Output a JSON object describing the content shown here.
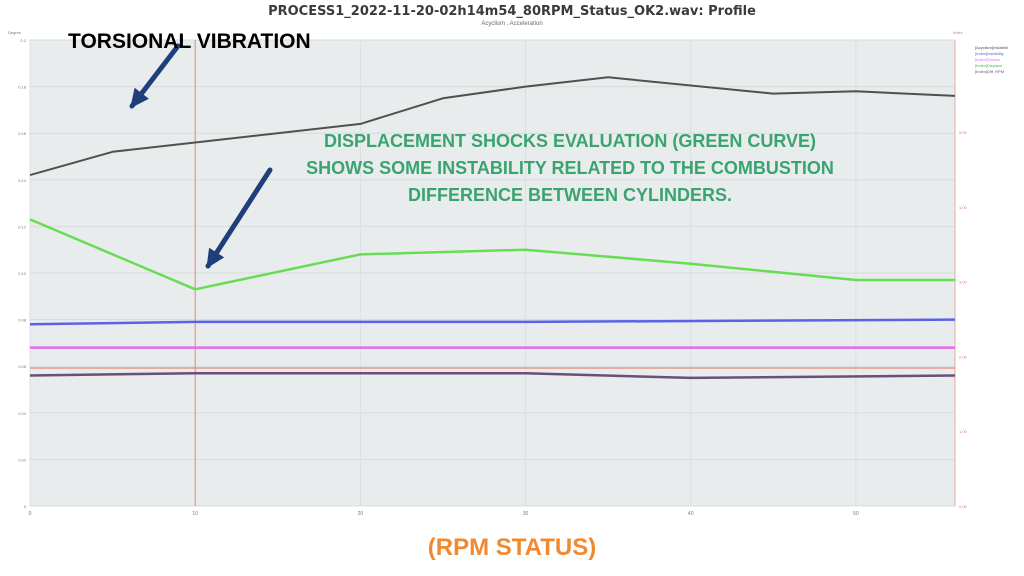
{
  "title": "PROCESS1_2022-11-20-02h14m54_80RPM_Status_OK2.wav: Profile",
  "subtitle": "Acyclism , Acceleration",
  "annotations": {
    "torsional": "TORSIONAL VIBRATION",
    "displacement_lines": [
      "DISPLACEMENT SHOCKS EVALUATION (GREEN CURVE)",
      "SHOWS SOME INSTABILITY RELATED TO THE COMBUSTION",
      "DIFFERENCE BETWEEN CYLINDERS."
    ],
    "x_caption": "(RPM STATUS)"
  },
  "colors": {
    "background": "#e9ecec",
    "annotation_green": "#3aa470",
    "caption_orange": "#f08a2e",
    "arrow": "#1f3f7a",
    "cursor": "#e8857a"
  },
  "chart_data": {
    "type": "line",
    "x_ticks": [
      "0",
      "10",
      "20",
      "30",
      "40",
      "50"
    ],
    "xlim": [
      0,
      56
    ],
    "left_axis": {
      "ylim": [
        0,
        0.2
      ],
      "ticks": [
        "0.2",
        "0.18",
        "0.16",
        "0.14",
        "0.12",
        "0.10",
        "0.08",
        "0.06",
        "0.04",
        "0.02",
        "0"
      ]
    },
    "right_axis": {
      "ticks": [
        "5.00",
        "4.00",
        "3.00",
        "2.00",
        "1.00",
        "0.00"
      ]
    },
    "cursor_x": 10,
    "grid": true,
    "legend_position": "right",
    "series": [
      {
        "color": "#505050",
        "x": [
          0,
          5,
          10,
          20,
          25,
          30,
          35,
          45,
          50,
          56
        ],
        "y": [
          0.142,
          0.152,
          0.156,
          0.164,
          0.175,
          0.18,
          0.184,
          0.177,
          0.178,
          0.176
        ]
      },
      {
        "color": "#66dd55",
        "x": [
          0,
          10,
          20,
          30,
          40,
          50,
          56
        ],
        "y": [
          0.123,
          0.093,
          0.108,
          0.11,
          0.104,
          0.097,
          0.097
        ]
      },
      {
        "color": "#5a63e6",
        "x": [
          0,
          10,
          30,
          56
        ],
        "y": [
          0.078,
          0.079,
          0.079,
          0.08
        ]
      },
      {
        "color": "#e86ae8",
        "x": [
          0,
          56
        ],
        "y": [
          0.068,
          0.068
        ]
      },
      {
        "color": "#6a5077",
        "x": [
          0,
          10,
          30,
          40,
          56
        ],
        "y": [
          0.056,
          0.057,
          0.057,
          0.055,
          0.056
        ]
      }
    ],
    "legend_entries": [
      "[Acyclism]Instabilit",
      "[Index]Instability",
      "[Index]Shocks",
      "[Index]Displace",
      "[Index]Diff. RPM"
    ]
  }
}
